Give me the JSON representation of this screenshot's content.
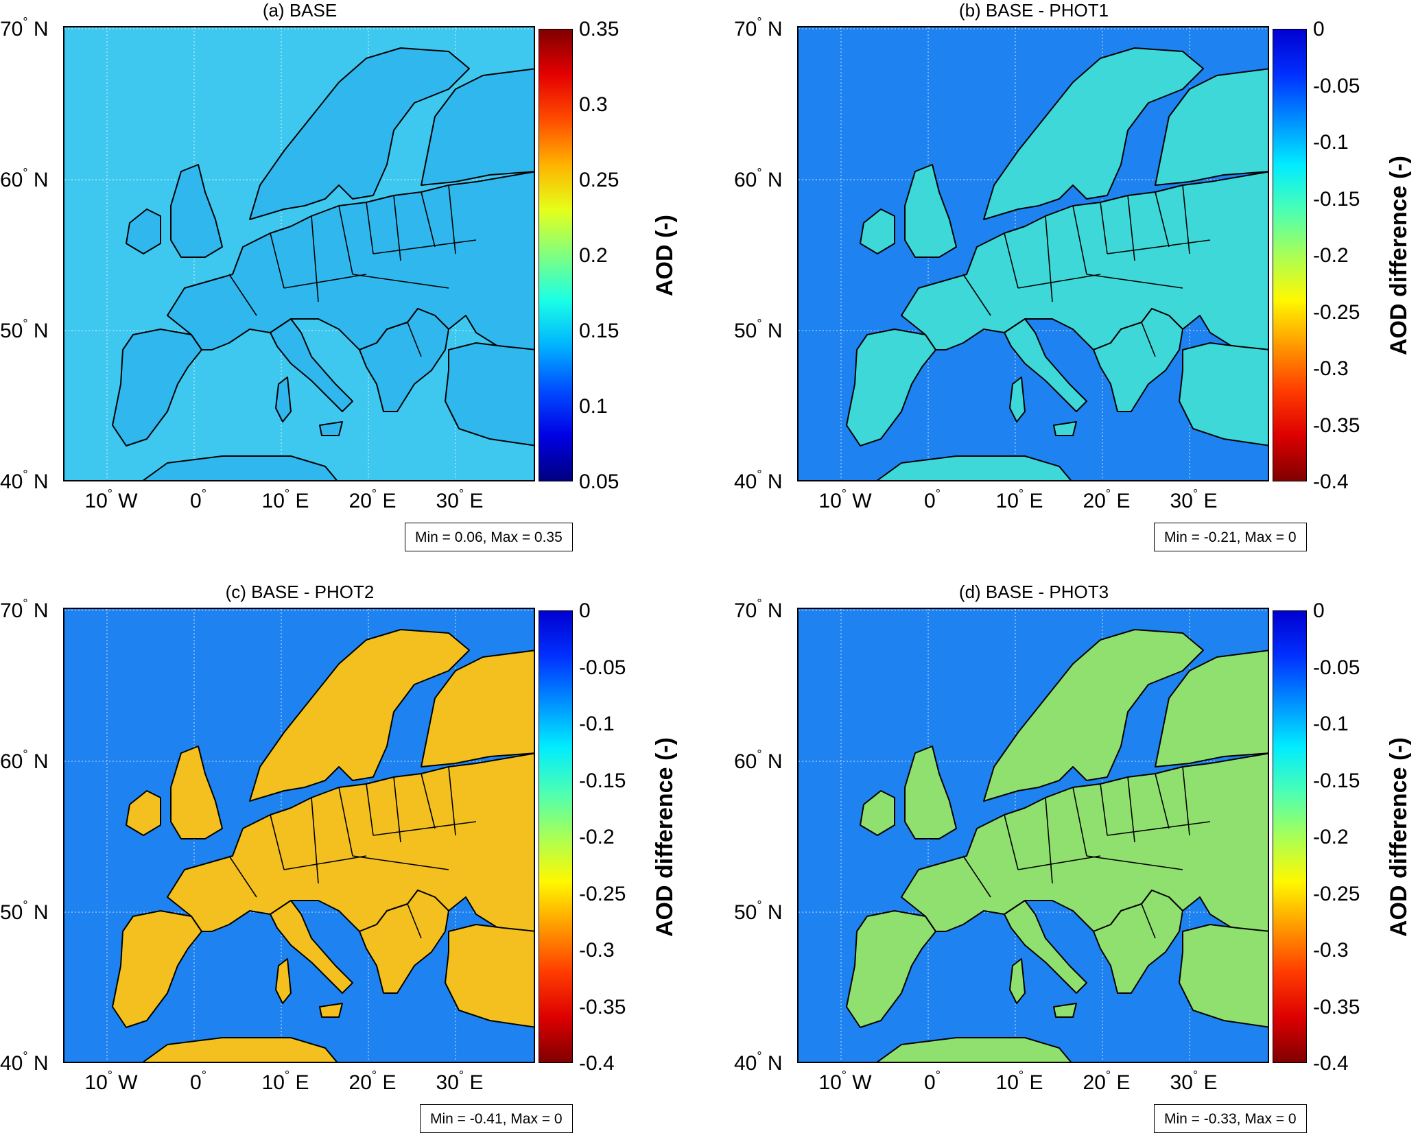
{
  "figure": {
    "panels": [
      {
        "id": "a",
        "title": "(a) BASE",
        "colorbar_label": "AOD (-)",
        "colorbar_ticks": [
          "0.35",
          "0.3",
          "0.25",
          "0.2",
          "0.15",
          "0.1",
          "0.05"
        ],
        "colormap": "jet",
        "stats": "Min = 0.06, Max = 0.35",
        "sea_color": "#3ec8f0",
        "land_color": "#30b8ee"
      },
      {
        "id": "b",
        "title": "(b) BASE - PHOT1",
        "colorbar_label": "AOD difference (-)",
        "colorbar_ticks": [
          "0",
          "-0.05",
          "-0.1",
          "-0.15",
          "-0.2",
          "-0.25",
          "-0.3",
          "-0.35",
          "-0.4"
        ],
        "colormap": "jet-reversed",
        "stats": "Min = -0.21, Max = 0",
        "sea_color": "#1e82f0",
        "land_color": "#3ed8d8"
      },
      {
        "id": "c",
        "title": "(c) BASE - PHOT2",
        "colorbar_label": "AOD difference (-)",
        "colorbar_ticks": [
          "0",
          "-0.05",
          "-0.1",
          "-0.15",
          "-0.2",
          "-0.25",
          "-0.3",
          "-0.35",
          "-0.4"
        ],
        "colormap": "jet-reversed",
        "stats": "Min = -0.41, Max = 0",
        "sea_color": "#1e82f0",
        "land_color": "#f4c020"
      },
      {
        "id": "d",
        "title": "(d) BASE - PHOT3",
        "colorbar_label": "AOD difference (-)",
        "colorbar_ticks": [
          "0",
          "-0.05",
          "-0.1",
          "-0.15",
          "-0.2",
          "-0.25",
          "-0.3",
          "-0.35",
          "-0.4"
        ],
        "colormap": "jet-reversed",
        "stats": "Min = -0.33, Max = 0",
        "sea_color": "#1e82f0",
        "land_color": "#90e070"
      }
    ],
    "lat_labels": [
      {
        "deg": "70",
        "hem": "N"
      },
      {
        "deg": "60",
        "hem": "N"
      },
      {
        "deg": "50",
        "hem": "N"
      },
      {
        "deg": "40",
        "hem": "N"
      }
    ],
    "lon_labels": [
      {
        "deg": "10",
        "hem": "W"
      },
      {
        "deg": "0",
        "hem": ""
      },
      {
        "deg": "10",
        "hem": "E"
      },
      {
        "deg": "20",
        "hem": "E"
      },
      {
        "deg": "30",
        "hem": "E"
      }
    ],
    "degree_symbol": "°"
  }
}
